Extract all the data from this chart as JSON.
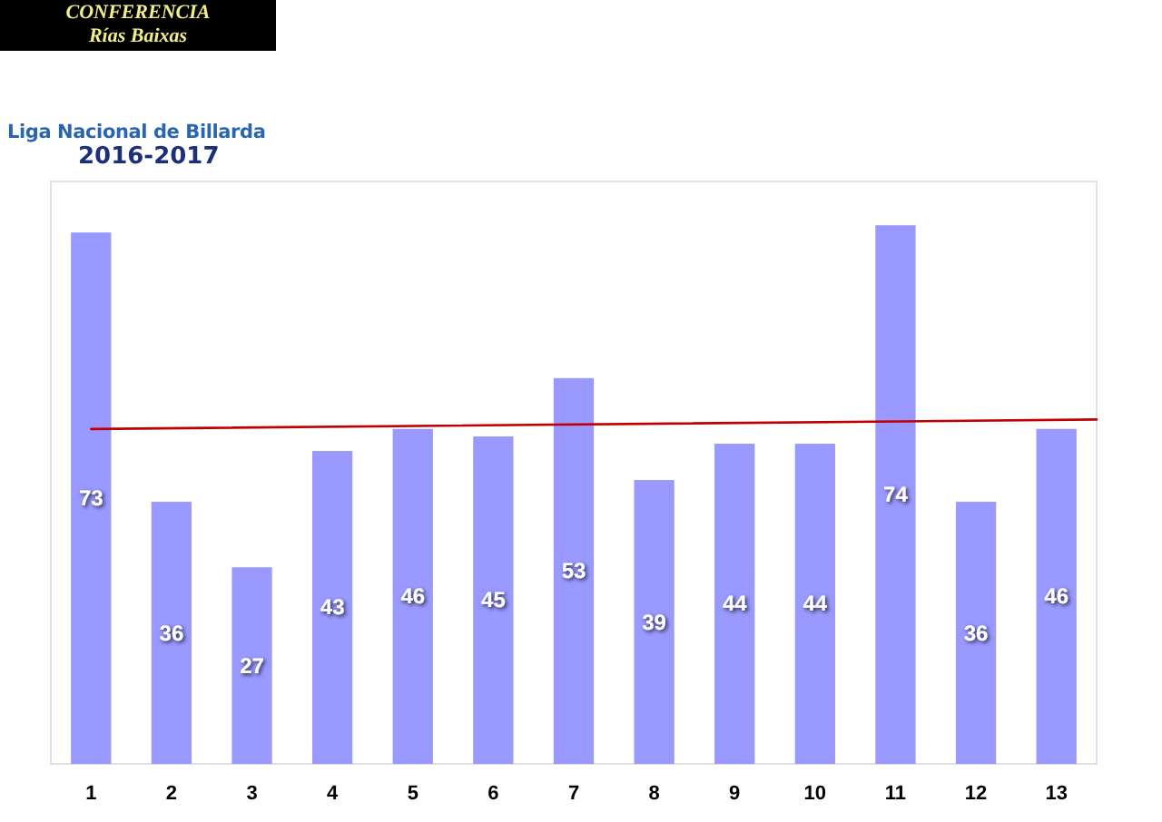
{
  "chart_data": {
    "type": "bar",
    "title": "CONFERENCIA",
    "subtitle": "Rías Baixas",
    "annotations": [
      "Liga Nacional de Billarda",
      "2016-2017"
    ],
    "x": [
      1,
      2,
      3,
      4,
      5,
      6,
      7,
      8,
      9,
      10,
      11,
      12,
      13
    ],
    "xlim": [
      0.5,
      13.5
    ],
    "xticks": [
      1,
      2,
      3,
      4,
      5,
      6,
      7,
      8,
      9,
      10,
      11,
      12,
      13
    ],
    "series": [
      {
        "color": "#9999ff",
        "values": [
          73,
          36,
          27,
          43,
          46,
          45,
          53,
          39,
          44,
          44,
          74,
          36,
          46
        ],
        "value_labels": [
          "73",
          "36",
          "27",
          "43",
          "46",
          "45",
          "53",
          "39",
          "44",
          "44",
          "74",
          "36",
          "46"
        ]
      },
      {
        "type": "line",
        "x": [
          1,
          13.5
        ],
        "values": [
          46.0,
          47.3
        ],
        "color": "#c00000"
      }
    ],
    "tick_labels": "x",
    "grid": false,
    "marker": "none",
    "line_style": "solid"
  }
}
